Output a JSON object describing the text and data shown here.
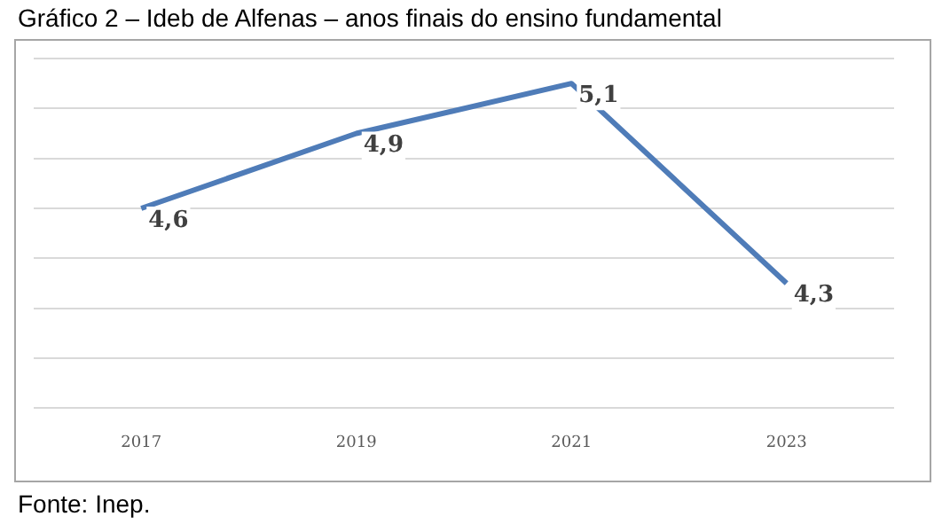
{
  "chart_data": {
    "type": "line",
    "title": "Gráfico 2 – Ideb de Alfenas – anos finais do ensino fundamental",
    "categories": [
      "2017",
      "2019",
      "2021",
      "2023"
    ],
    "series": [
      {
        "color": "#4f7cb8",
        "values": [
          4.6,
          4.9,
          5.1,
          4.3
        ],
        "value_labels": [
          "4,6",
          "4,9",
          "5,1",
          "4,3"
        ]
      }
    ],
    "ylim": [
      3.8,
      5.2
    ],
    "yticks": [
      {
        "value": 3.8,
        "label": null
      },
      {
        "value": 4.0,
        "label": null
      },
      {
        "value": 4.2,
        "label": null
      },
      {
        "value": 4.4,
        "label": null
      },
      {
        "value": 4.6,
        "label": null
      },
      {
        "value": 4.8,
        "label": null
      },
      {
        "value": 5.0,
        "label": null
      },
      {
        "value": 5.2,
        "label": null
      }
    ],
    "tick_labels": "x",
    "grid": "y",
    "marker": "none",
    "line_style": "solid",
    "legend": false,
    "annotations": [
      "Fonte: Inep."
    ]
  }
}
